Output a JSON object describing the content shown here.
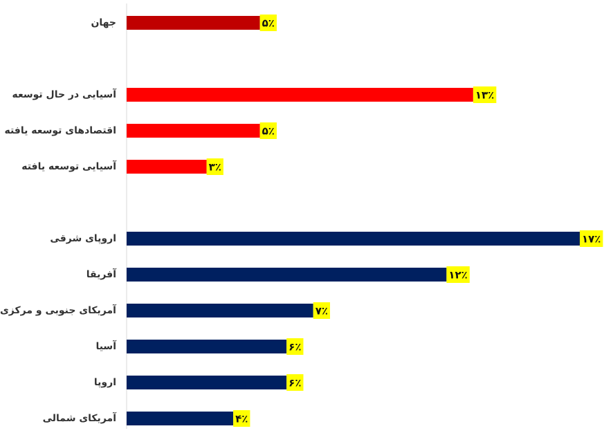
{
  "chart_data": {
    "type": "bar",
    "orientation": "horizontal",
    "categories": [
      "جهان",
      "آسیایی در حال توسعه",
      "اقتصادهای توسعه یافته",
      "آسیایی توسعه یافته",
      "اروپای شرقی",
      "آفریقا",
      "آمریکای جنوبی و مرکزی",
      "آسیا",
      "اروپا",
      "آمریکای شمالی"
    ],
    "values": [
      5,
      13,
      5,
      3,
      17,
      12,
      7,
      6,
      6,
      4
    ],
    "value_labels": [
      "۵٪",
      "۱۳٪",
      "۵٪",
      "۳٪",
      "۱۷٪",
      "۱۲٪",
      "۷٪",
      "۶٪",
      "۶٪",
      "۴٪"
    ],
    "colors": [
      "#c00000",
      "#ff0000",
      "#ff0000",
      "#ff0000",
      "#002060",
      "#002060",
      "#002060",
      "#002060",
      "#002060",
      "#002060"
    ],
    "label_background": "#ffff00",
    "xlim": [
      0,
      17
    ]
  }
}
